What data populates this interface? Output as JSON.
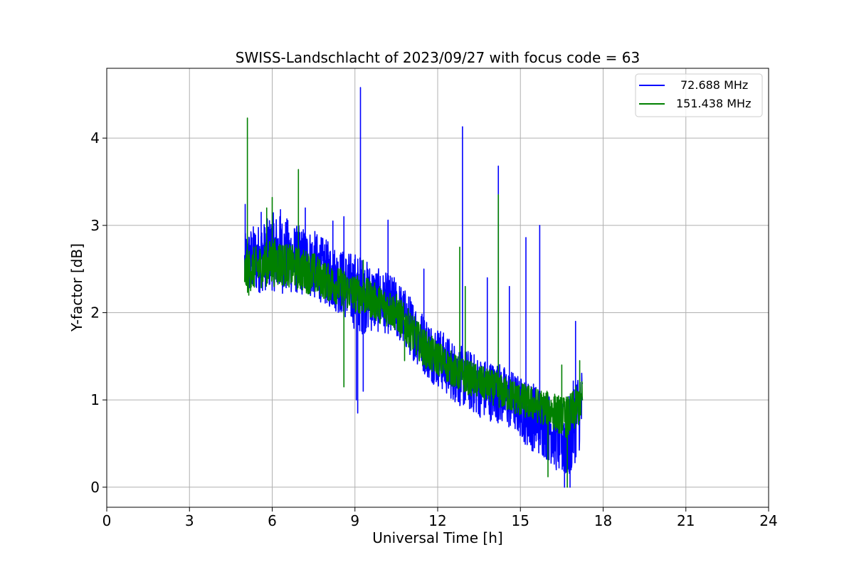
{
  "chart_data": {
    "type": "line",
    "title": "SWISS-Landschlacht of 2023/09/27 with focus code = 63",
    "xlabel": "Universal Time [h]",
    "ylabel": "Y-factor [dB]",
    "xlim": [
      0,
      24
    ],
    "ylim": [
      -0.23,
      4.8
    ],
    "xticks": [
      0,
      3,
      6,
      9,
      12,
      15,
      18,
      21,
      24
    ],
    "yticks": [
      0,
      1,
      2,
      3,
      4
    ],
    "xtick_labels": [
      "0",
      "3",
      "6",
      "9",
      "12",
      "15",
      "18",
      "21",
      "24"
    ],
    "ytick_labels": [
      "0",
      "1",
      "2",
      "3",
      "4"
    ],
    "grid": true,
    "legend_position": "top-right",
    "series": [
      {
        "name": "72.688 MHz",
        "color": "#0000ff",
        "x": [
          5.0,
          5.25,
          5.5,
          5.75,
          6.0,
          6.25,
          6.5,
          6.75,
          7.0,
          7.25,
          7.5,
          7.75,
          8.0,
          8.25,
          8.5,
          8.75,
          9.0,
          9.25,
          9.5,
          9.75,
          10.0,
          10.25,
          10.5,
          10.75,
          11.0,
          11.25,
          11.5,
          11.75,
          12.0,
          12.25,
          12.5,
          12.75,
          13.0,
          13.25,
          13.5,
          13.75,
          14.0,
          14.25,
          14.5,
          14.75,
          15.0,
          15.25,
          15.5,
          15.75,
          16.0,
          16.25,
          16.5,
          16.75,
          17.0,
          17.25
        ],
        "center": [
          2.55,
          2.6,
          2.62,
          2.65,
          2.7,
          2.68,
          2.65,
          2.62,
          2.6,
          2.58,
          2.55,
          2.5,
          2.45,
          2.4,
          2.35,
          2.3,
          2.25,
          2.2,
          2.18,
          2.15,
          2.12,
          2.1,
          2.05,
          1.95,
          1.85,
          1.75,
          1.65,
          1.55,
          1.5,
          1.42,
          1.35,
          1.28,
          1.25,
          1.2,
          1.15,
          1.12,
          1.1,
          1.08,
          1.02,
          0.98,
          0.92,
          0.85,
          0.8,
          0.75,
          0.7,
          0.62,
          0.55,
          0.55,
          0.8,
          0.95
        ],
        "spread": [
          0.35,
          0.4,
          0.4,
          0.4,
          0.45,
          0.45,
          0.45,
          0.4,
          0.4,
          0.4,
          0.4,
          0.38,
          0.38,
          0.38,
          0.38,
          0.4,
          0.45,
          0.45,
          0.4,
          0.38,
          0.35,
          0.35,
          0.35,
          0.35,
          0.35,
          0.35,
          0.35,
          0.35,
          0.35,
          0.35,
          0.35,
          0.35,
          0.35,
          0.35,
          0.35,
          0.35,
          0.35,
          0.35,
          0.35,
          0.35,
          0.35,
          0.4,
          0.4,
          0.4,
          0.4,
          0.4,
          0.45,
          0.5,
          0.5,
          0.45
        ],
        "spikes": [
          [
            5.02,
            3.24
          ],
          [
            5.6,
            3.15
          ],
          [
            6.3,
            3.18
          ],
          [
            7.2,
            3.2
          ],
          [
            8.2,
            3.05
          ],
          [
            8.6,
            3.1
          ],
          [
            9.05,
            1.0
          ],
          [
            9.1,
            0.85
          ],
          [
            9.2,
            4.58
          ],
          [
            9.3,
            1.1
          ],
          [
            10.2,
            3.06
          ],
          [
            10.3,
            1.8
          ],
          [
            11.5,
            2.5
          ],
          [
            12.9,
            4.13
          ],
          [
            13.8,
            2.4
          ],
          [
            14.2,
            3.68
          ],
          [
            14.6,
            2.3
          ],
          [
            15.2,
            2.86
          ],
          [
            15.4,
            0.5
          ],
          [
            15.7,
            3.0
          ],
          [
            16.3,
            0.2
          ],
          [
            16.6,
            0.0
          ],
          [
            16.8,
            0.0
          ],
          [
            17.0,
            1.9
          ]
        ]
      },
      {
        "name": "151.438 MHz",
        "color": "#008000",
        "x": [
          5.0,
          5.25,
          5.5,
          5.75,
          6.0,
          6.25,
          6.5,
          6.75,
          7.0,
          7.25,
          7.5,
          7.75,
          8.0,
          8.25,
          8.5,
          8.75,
          9.0,
          9.25,
          9.5,
          9.75,
          10.0,
          10.25,
          10.5,
          10.75,
          11.0,
          11.25,
          11.5,
          11.75,
          12.0,
          12.25,
          12.5,
          12.75,
          13.0,
          13.25,
          13.5,
          13.75,
          14.0,
          14.25,
          14.5,
          14.75,
          15.0,
          15.25,
          15.5,
          15.75,
          16.0,
          16.25,
          16.5,
          16.75,
          17.0,
          17.25
        ],
        "center": [
          2.45,
          2.5,
          2.52,
          2.55,
          2.58,
          2.57,
          2.55,
          2.52,
          2.5,
          2.47,
          2.45,
          2.4,
          2.35,
          2.32,
          2.3,
          2.25,
          2.22,
          2.2,
          2.17,
          2.12,
          2.08,
          2.05,
          2.0,
          1.9,
          1.8,
          1.7,
          1.6,
          1.52,
          1.48,
          1.42,
          1.36,
          1.3,
          1.27,
          1.24,
          1.2,
          1.17,
          1.14,
          1.1,
          1.07,
          1.04,
          1.0,
          0.98,
          0.95,
          0.92,
          0.9,
          0.86,
          0.82,
          0.8,
          0.9,
          1.0
        ],
        "spread": [
          0.25,
          0.25,
          0.25,
          0.25,
          0.28,
          0.28,
          0.25,
          0.25,
          0.25,
          0.25,
          0.25,
          0.22,
          0.22,
          0.22,
          0.22,
          0.22,
          0.22,
          0.22,
          0.22,
          0.22,
          0.22,
          0.22,
          0.22,
          0.22,
          0.22,
          0.22,
          0.22,
          0.22,
          0.2,
          0.2,
          0.2,
          0.2,
          0.2,
          0.2,
          0.2,
          0.2,
          0.2,
          0.2,
          0.2,
          0.2,
          0.2,
          0.2,
          0.2,
          0.2,
          0.2,
          0.22,
          0.22,
          0.25,
          0.25,
          0.25
        ],
        "spikes": [
          [
            5.1,
            4.23
          ],
          [
            5.15,
            2.2
          ],
          [
            5.8,
            3.2
          ],
          [
            6.0,
            3.32
          ],
          [
            6.95,
            3.64
          ],
          [
            8.6,
            1.15
          ],
          [
            9.3,
            2.6
          ],
          [
            10.8,
            1.45
          ],
          [
            12.8,
            2.75
          ],
          [
            13.0,
            2.3
          ],
          [
            14.2,
            3.35
          ],
          [
            16.0,
            0.12
          ],
          [
            16.5,
            1.4
          ],
          [
            16.7,
            0.0
          ],
          [
            17.15,
            1.45
          ]
        ]
      }
    ]
  }
}
